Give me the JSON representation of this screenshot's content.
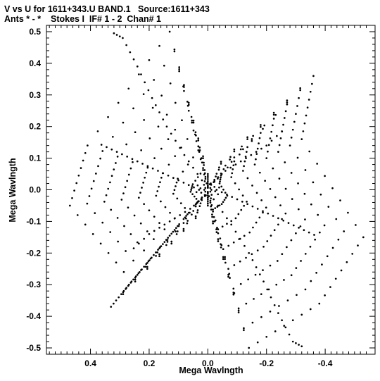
{
  "header": {
    "line1": "V vs U for 1611+343.U BAND.1   Source:1611+343",
    "line2": "Ants * - *    Stokes I  IF# 1 - 2  Chan# 1"
  },
  "chart_data": {
    "type": "scatter",
    "xlabel": "Mega Wavlngth",
    "ylabel": "Mega Wavlngth",
    "xlim": [
      0.55,
      -0.57
    ],
    "ylim": [
      -0.52,
      0.52
    ],
    "x_reversed": true,
    "x_ticks": [
      0.4,
      0.2,
      0.0,
      -0.2,
      -0.4
    ],
    "x_tick_labels": [
      "0.4",
      "0.2",
      "0.0",
      "-0.2",
      "-0.4"
    ],
    "y_ticks": [
      0.5,
      0.4,
      0.3,
      0.2,
      0.1,
      0.0,
      -0.1,
      -0.2,
      -0.3,
      -0.4,
      -0.5
    ],
    "y_tick_labels": [
      "0.5",
      "0.4",
      "0.3",
      "0.2",
      "0.1",
      "0.0",
      "-0.1",
      "-0.2",
      "-0.3",
      "-0.4",
      "-0.5"
    ],
    "grid": false,
    "pattern": "six-armed star of uv-coverage tracks symmetric about the origin",
    "arms": [
      [
        0.13,
        0.5
      ],
      [
        0.41,
        0.14
      ],
      [
        0.47,
        -0.05
      ],
      [
        0.26,
        -0.29
      ],
      [
        0.33,
        -0.37
      ],
      [
        0.0,
        -0.05
      ],
      [
        -0.14,
        -0.5
      ],
      [
        -0.38,
        -0.36
      ],
      [
        -0.53,
        -0.15
      ],
      [
        -0.32,
        0.16
      ],
      [
        -0.36,
        0.36
      ],
      [
        0.0,
        0.05
      ]
    ],
    "tracks": [
      {
        "x": [
          0.02,
          0.08,
          0.14,
          0.19,
          0.24,
          0.29,
          0.33
        ],
        "y": [
          0.03,
          0.11,
          0.2,
          0.29,
          0.39,
          0.48,
          0.5
        ]
      },
      {
        "x": [
          0.03,
          0.1,
          0.17,
          0.24,
          0.31,
          0.38
        ],
        "y": [
          0.0,
          0.03,
          0.06,
          0.09,
          0.12,
          0.15
        ]
      },
      {
        "x": [
          0.01,
          0.06,
          0.13,
          0.2,
          0.27
        ],
        "y": [
          -0.02,
          -0.06,
          -0.1,
          -0.14,
          -0.2
        ]
      },
      {
        "x": [
          -0.02,
          -0.08,
          -0.14,
          -0.19,
          -0.24,
          -0.29,
          -0.33
        ],
        "y": [
          -0.03,
          -0.11,
          -0.2,
          -0.29,
          -0.39,
          -0.48,
          -0.5
        ]
      },
      {
        "x": [
          -0.03,
          -0.1,
          -0.17,
          -0.24,
          -0.31,
          -0.38
        ],
        "y": [
          0.0,
          -0.03,
          -0.06,
          -0.09,
          -0.12,
          -0.15
        ]
      },
      {
        "x": [
          -0.01,
          -0.06,
          -0.13,
          -0.2,
          -0.27
        ],
        "y": [
          0.02,
          0.06,
          0.1,
          0.14,
          0.2
        ]
      }
    ]
  }
}
